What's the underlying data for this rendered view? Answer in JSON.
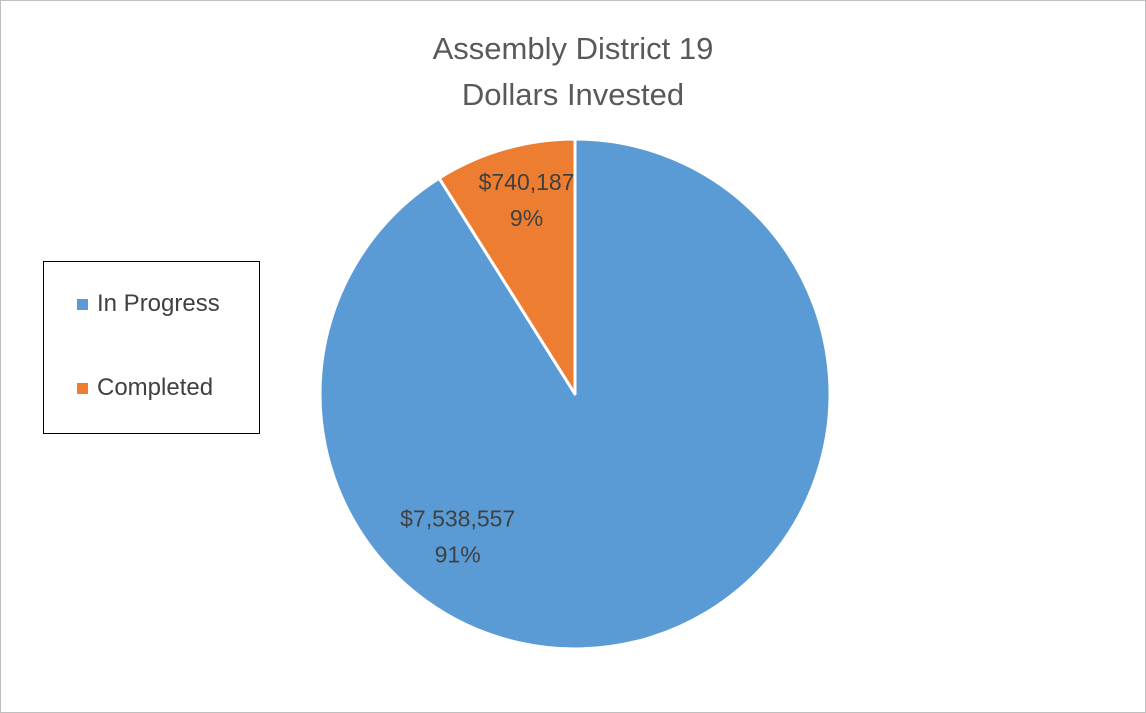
{
  "chart_data": {
    "type": "pie",
    "title_lines": [
      "Assembly District 19",
      "Dollars Invested"
    ],
    "slices": [
      {
        "name": "In Progress",
        "value": 7538557,
        "value_label": "$7,538,557",
        "percent_label": "91%",
        "color": "#5b9bd5"
      },
      {
        "name": "Completed",
        "value": 740187,
        "value_label": "$740,187",
        "percent_label": "9%",
        "color": "#ed7d31"
      }
    ],
    "legend_position": "left"
  }
}
